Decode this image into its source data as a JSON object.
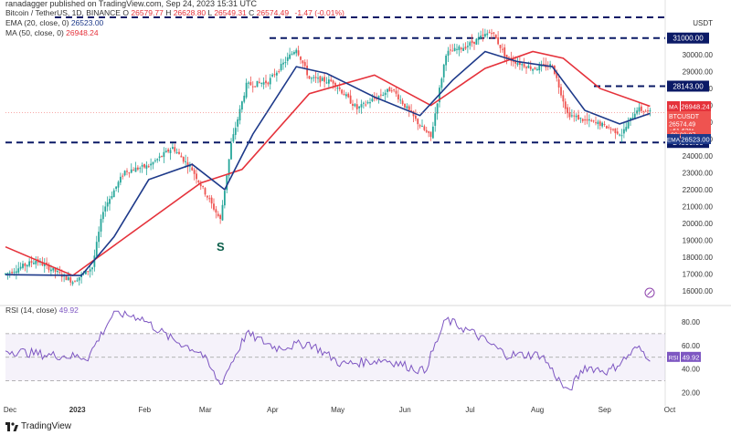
{
  "header": {
    "published": "ranadagger published on TradingView.com, Sep 24, 2023 15:31 UTC"
  },
  "legend": {
    "symbol": "Bitcoin / TetherUS, 1D, BINANCE",
    "ohlc": [
      {
        "k": "O",
        "v": "26579.77"
      },
      {
        "k": "H",
        "v": "26628.80"
      },
      {
        "k": "L",
        "v": "26549.31"
      },
      {
        "k": "C",
        "v": "26574.49"
      }
    ],
    "change": "-1.47 (-0.01%)",
    "ema_label": "EMA (20, close, 0)",
    "ema_value": "26523.00",
    "ma_label": "MA (50, close, 0)",
    "ma_value": "26948.24",
    "rsi_label": "RSI (14, close)",
    "rsi_value": "49.92"
  },
  "axis": {
    "currency": "USDT",
    "price_ticks": [
      16000,
      17000,
      18000,
      19000,
      20000,
      21000,
      22000,
      23000,
      24000,
      25000,
      26000,
      27000,
      28000,
      29000,
      30000
    ],
    "rsi_ticks": [
      20,
      40,
      60,
      80
    ],
    "months": [
      "Dec",
      "2023",
      "Feb",
      "Mar",
      "Apr",
      "May",
      "Jun",
      "Jul",
      "Aug",
      "Sep",
      "Oct"
    ]
  },
  "price_labels": {
    "level_31000": "31000.00",
    "level_28143": "28143.00",
    "level_24800": "24800.00",
    "ma_tag": "MA",
    "ma_val": "26948.24",
    "sym_tag": "BTCUSDT",
    "sym_val": "26574.49",
    "sym_chg": "+61.62%",
    "sym_time": "08:28:27",
    "ema_tag": "EMA",
    "ema_val": "26523.00",
    "rsi_tag": "RSI",
    "rsi_val": "49.92"
  },
  "annotation": "S",
  "footer": {
    "brand": "TradingView"
  },
  "colors": {
    "up": "#26a69a",
    "down": "#ef5350",
    "ema": "#1e3a8a",
    "ma": "#e5323b",
    "level": "#0b1a66",
    "rsi": "#7e57c2",
    "rsi_band": "rgba(126,87,194,0.08)"
  },
  "chart_data": {
    "type": "line",
    "title": "Bitcoin / TetherUS, 1D, BINANCE",
    "x_range": [
      "2022-12-01",
      "2023-10-01"
    ],
    "ylim": [
      15500,
      32500
    ],
    "horizontal_levels": [
      31000,
      28143,
      24800
    ],
    "series": [
      {
        "name": "BTCUSDT",
        "x": [
          "2022-12-01",
          "2022-12-15",
          "2023-01-01",
          "2023-01-10",
          "2023-01-15",
          "2023-01-25",
          "2023-02-05",
          "2023-02-16",
          "2023-02-25",
          "2023-03-10",
          "2023-03-15",
          "2023-03-22",
          "2023-04-01",
          "2023-04-14",
          "2023-04-20",
          "2023-05-01",
          "2023-05-12",
          "2023-05-28",
          "2023-06-10",
          "2023-06-15",
          "2023-06-22",
          "2023-07-01",
          "2023-07-13",
          "2023-07-20",
          "2023-08-01",
          "2023-08-10",
          "2023-08-17",
          "2023-08-25",
          "2023-09-01",
          "2023-09-11",
          "2023-09-18",
          "2023-09-24"
        ],
        "values": [
          17000,
          17800,
          16550,
          17400,
          20800,
          23100,
          23400,
          24500,
          23200,
          20200,
          24700,
          28200,
          28400,
          30400,
          28600,
          28400,
          26800,
          28000,
          25800,
          25100,
          30100,
          30500,
          31400,
          29800,
          29200,
          29400,
          26500,
          26100,
          25900,
          25300,
          26800,
          26574
        ]
      },
      {
        "name": "EMA 20",
        "x": [
          "2022-12-01",
          "2023-01-05",
          "2023-01-20",
          "2023-02-05",
          "2023-02-25",
          "2023-03-12",
          "2023-03-25",
          "2023-04-14",
          "2023-04-28",
          "2023-05-20",
          "2023-06-10",
          "2023-06-25",
          "2023-07-10",
          "2023-07-25",
          "2023-08-10",
          "2023-08-25",
          "2023-09-10",
          "2023-09-24"
        ],
        "values": [
          16950,
          16900,
          19200,
          22600,
          23500,
          22000,
          25300,
          29300,
          28900,
          27500,
          26400,
          28500,
          30200,
          29600,
          29300,
          26700,
          25900,
          26523
        ]
      },
      {
        "name": "MA 50",
        "x": [
          "2022-12-01",
          "2023-01-01",
          "2023-02-01",
          "2023-03-01",
          "2023-03-20",
          "2023-04-20",
          "2023-05-20",
          "2023-06-15",
          "2023-07-10",
          "2023-08-01",
          "2023-08-15",
          "2023-09-01",
          "2023-09-24"
        ],
        "values": [
          18600,
          16900,
          19800,
          22400,
          23200,
          27700,
          28800,
          27000,
          29200,
          30200,
          29800,
          28000,
          26948
        ]
      }
    ],
    "rsi": {
      "name": "RSI (14, close)",
      "ylim": [
        15,
        90
      ],
      "bands": [
        30,
        70
      ],
      "x": [
        "2022-12-01",
        "2022-12-20",
        "2023-01-08",
        "2023-01-20",
        "2023-02-01",
        "2023-02-15",
        "2023-03-01",
        "2023-03-10",
        "2023-03-22",
        "2023-04-05",
        "2023-04-20",
        "2023-05-05",
        "2023-05-25",
        "2023-06-12",
        "2023-06-22",
        "2023-07-05",
        "2023-07-20",
        "2023-08-05",
        "2023-08-17",
        "2023-08-25",
        "2023-09-05",
        "2023-09-12",
        "2023-09-18",
        "2023-09-24"
      ],
      "values": [
        56,
        52,
        50,
        88,
        84,
        66,
        54,
        27,
        70,
        58,
        62,
        44,
        48,
        38,
        82,
        70,
        52,
        52,
        20,
        42,
        38,
        48,
        58,
        49.92
      ]
    }
  }
}
